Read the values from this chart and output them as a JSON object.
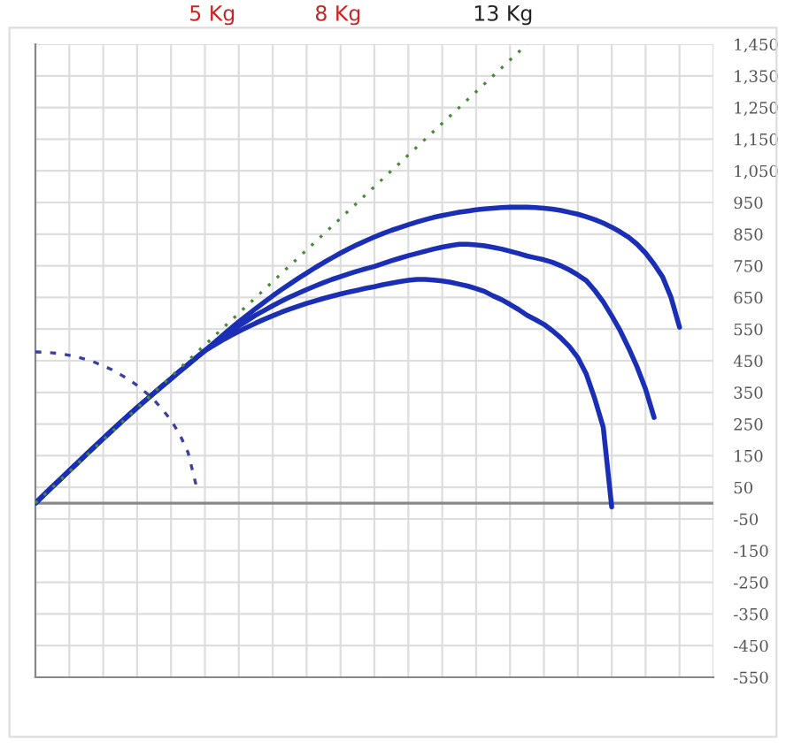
{
  "chart_data": {
    "type": "line",
    "annotations": [
      "5 Kg",
      "8 Kg",
      "13 Kg"
    ],
    "categories": [
      null,
      null,
      null,
      null,
      null,
      null,
      null,
      null,
      null,
      null,
      null,
      null,
      null,
      null,
      null,
      null,
      null,
      null,
      null,
      null,
      null,
      null,
      null,
      null,
      null,
      null,
      null,
      null,
      null,
      null,
      null,
      null,
      null,
      null,
      null,
      null,
      null,
      null,
      null,
      null,
      null,
      null,
      null,
      null,
      null,
      null,
      null,
      null,
      null,
      null,
      null,
      null,
      null,
      null,
      null,
      null,
      null,
      null,
      null,
      null,
      null,
      null,
      null,
      null,
      null,
      null,
      null,
      null,
      null,
      null,
      null,
      null,
      null,
      null,
      null,
      null,
      null,
      null,
      null,
      null,
      null
    ],
    "series": [
      {
        "color": "#1a2fb5",
        "line_style": "solid",
        "values": [
          0,
          26,
          52,
          77,
          103,
          128,
          154,
          179,
          204,
          229,
          254,
          278,
          302,
          325,
          348,
          371,
          393,
          416,
          438,
          460,
          482,
          505,
          528,
          551,
          573,
          594,
          615,
          635,
          655,
          674,
          692,
          710,
          727,
          744,
          760,
          775,
          790,
          804,
          817,
          829,
          841,
          852,
          862,
          871,
          880,
          888,
          896,
          903,
          909,
          914,
          919,
          923,
          927,
          930,
          932,
          934,
          935,
          935,
          935,
          934,
          932,
          929,
          925,
          919,
          913,
          905,
          896,
          885,
          872,
          857,
          840,
          818,
          790,
          755,
          715,
          650,
          556,
          null,
          null,
          null,
          null
        ]
      },
      {
        "color": "#1a2fb5",
        "line_style": "solid",
        "values": [
          0,
          26,
          52,
          77,
          103,
          128,
          154,
          179,
          204,
          229,
          254,
          278,
          302,
          325,
          348,
          371,
          393,
          416,
          438,
          460,
          482,
          502,
          522,
          541,
          560,
          577,
          594,
          609,
          624,
          638,
          651,
          663,
          675,
          686,
          697,
          707,
          716,
          725,
          733,
          741,
          748,
          757,
          766,
          774,
          782,
          789,
          796,
          803,
          809,
          814,
          818,
          818,
          816,
          813,
          808,
          803,
          796,
          789,
          781,
          775,
          769,
          761,
          750,
          737,
          721,
          703,
          672,
          636,
          592,
          545,
          490,
          430,
          360,
          271,
          null,
          null,
          null,
          null,
          null,
          null,
          null
        ]
      },
      {
        "color": "#1a2fb5",
        "line_style": "solid",
        "values": [
          0,
          26,
          52,
          77,
          103,
          128,
          154,
          179,
          204,
          229,
          254,
          278,
          302,
          325,
          348,
          371,
          393,
          416,
          438,
          460,
          482,
          498,
          514,
          529,
          543,
          556,
          569,
          581,
          592,
          603,
          613,
          622,
          631,
          639,
          647,
          654,
          661,
          667,
          673,
          679,
          684,
          690,
          695,
          700,
          704,
          707,
          707,
          705,
          702,
          698,
          692,
          686,
          678,
          669,
          655,
          643,
          628,
          612,
          594,
          580,
          565,
          545,
          522,
          495,
          460,
          408,
          330,
          240,
          -12,
          null,
          null,
          null,
          null,
          null,
          null,
          null,
          null,
          null,
          null,
          null,
          null
        ]
      },
      {
        "color": "#4a8a3a",
        "line_style": "dotted",
        "values": [
          0,
          25,
          50,
          75,
          100,
          125,
          150,
          175,
          200,
          225,
          250,
          275,
          300,
          325,
          350,
          375,
          400,
          425,
          450,
          475,
          500,
          525,
          550,
          575,
          600,
          625,
          650,
          675,
          700,
          725,
          750,
          775,
          800,
          825,
          850,
          875,
          900,
          925,
          950,
          975,
          1000,
          1025,
          1050,
          1075,
          1100,
          1125,
          1150,
          1175,
          1200,
          1225,
          1250,
          1275,
          1300,
          1325,
          1350,
          1375,
          1400,
          1425,
          1450,
          null,
          null,
          null,
          null,
          null,
          null,
          null,
          null,
          null,
          null,
          null,
          null,
          null,
          null,
          null,
          null,
          null,
          null,
          null,
          null,
          null,
          null
        ]
      },
      {
        "color": "#3a3fa0",
        "line_style": "dashed",
        "values": [
          478,
          477,
          475,
          472,
          467,
          461,
          454,
          445,
          434,
          422,
          407,
          391,
          372,
          350,
          326,
          296,
          262,
          219,
          161,
          53,
          null,
          null,
          null,
          null,
          null,
          null,
          null,
          null,
          null,
          null,
          null,
          null,
          null,
          null,
          null,
          null,
          null,
          null,
          null,
          null,
          null,
          null,
          null,
          null,
          null,
          null,
          null,
          null,
          null,
          null,
          null,
          null,
          null,
          null,
          null,
          null,
          null,
          null,
          null,
          null,
          null,
          null,
          null,
          null,
          null,
          null,
          null,
          null,
          null,
          null,
          null,
          null,
          null,
          null,
          null,
          null,
          null,
          null,
          null,
          null,
          null
        ]
      }
    ],
    "ylim": [
      -550,
      1450
    ],
    "yticks": [
      {
        "value": -550,
        "label": "-550"
      },
      {
        "value": -450,
        "label": "-450"
      },
      {
        "value": -350,
        "label": "-350"
      },
      {
        "value": -250,
        "label": "-250"
      },
      {
        "value": -150,
        "label": "-150"
      },
      {
        "value": -50,
        "label": "-50"
      },
      {
        "value": 50,
        "label": "50"
      },
      {
        "value": 150,
        "label": "150"
      },
      {
        "value": 250,
        "label": "250"
      },
      {
        "value": 350,
        "label": "350"
      },
      {
        "value": 450,
        "label": "450"
      },
      {
        "value": 550,
        "label": "550"
      },
      {
        "value": 650,
        "label": "650"
      },
      {
        "value": 750,
        "label": "750"
      },
      {
        "value": 850,
        "label": "850"
      },
      {
        "value": 950,
        "label": "950"
      },
      {
        "value": 1050,
        "label": "1,050"
      },
      {
        "value": 1150,
        "label": "1,150"
      },
      {
        "value": 1250,
        "label": "1,250"
      },
      {
        "value": 1350,
        "label": "1,350"
      },
      {
        "value": 1450,
        "label": "1,450"
      }
    ],
    "ref_lines": [
      {
        "axis": "y",
        "value": 0,
        "color": "#888888"
      }
    ],
    "tick_labels": "y",
    "grid": true,
    "legend": false,
    "marker": "none"
  }
}
